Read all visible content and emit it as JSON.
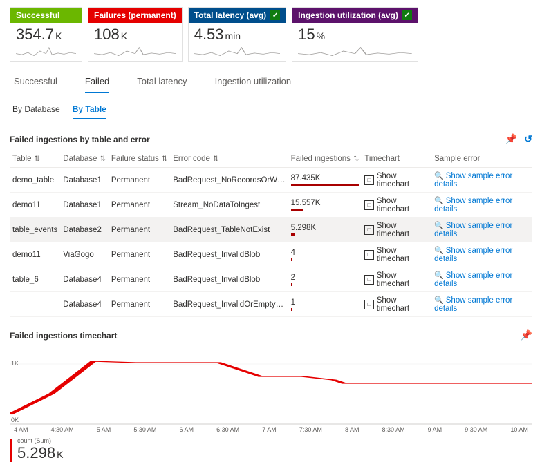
{
  "cards": [
    {
      "label": "Successful",
      "bg": "#6bb700",
      "value": "354.7",
      "unit": "K",
      "hasCheck": false
    },
    {
      "label": "Failures (permanent)",
      "bg": "#e50000",
      "value": "108",
      "unit": "K",
      "hasCheck": false
    },
    {
      "label": "Total latency (avg)",
      "bg": "#004e8c",
      "value": "4.53",
      "unit": "min",
      "hasCheck": true
    },
    {
      "label": "Ingestion utilization (avg)",
      "bg": "#5c126b",
      "value": "15",
      "unit": "%",
      "hasCheck": true
    }
  ],
  "tabs": [
    "Successful",
    "Failed",
    "Total latency",
    "Ingestion utilization"
  ],
  "activeTab": "Failed",
  "subTabs": [
    "By Database",
    "By Table"
  ],
  "activeSubTab": "By Table",
  "tableTitle": "Failed ingestions by table and error",
  "columns": [
    "Table",
    "Database",
    "Failure status",
    "Error code",
    "Failed ingestions",
    "Timechart",
    "Sample error"
  ],
  "rows": [
    {
      "table": "demo_table",
      "db": "Database1",
      "status": "Permanent",
      "code": "BadRequest_NoRecordsOrW…",
      "count": "87.435K",
      "bar": 100,
      "hl": false
    },
    {
      "table": "demo11",
      "db": "Database1",
      "status": "Permanent",
      "code": "Stream_NoDataToIngest",
      "count": "15.557K",
      "bar": 18,
      "hl": false
    },
    {
      "table": "table_events",
      "db": "Database2",
      "status": "Permanent",
      "code": "BadRequest_TableNotExist",
      "count": "5.298K",
      "bar": 6,
      "hl": true
    },
    {
      "table": "demo11",
      "db": "ViaGogo",
      "status": "Permanent",
      "code": "BadRequest_InvalidBlob",
      "count": "4",
      "bar": 1,
      "hl": false
    },
    {
      "table": "table_6",
      "db": "Database4",
      "status": "Permanent",
      "code": "BadRequest_InvalidBlob",
      "count": "2",
      "bar": 1,
      "hl": false
    },
    {
      "table": "",
      "db": "Database4",
      "status": "Permanent",
      "code": "BadRequest_InvalidOrEmpty…",
      "count": "1",
      "bar": 1,
      "hl": false
    }
  ],
  "timechartLabel": "Show timechart",
  "sampleErrorLabel": "Show sample error details",
  "chartTitle": "Failed ingestions timechart",
  "chart": {
    "yTicks": [
      "1K",
      "0K"
    ],
    "xTicks": [
      "4 AM",
      "4:30 AM",
      "5 AM",
      "5:30 AM",
      "6 AM",
      "6:30 AM",
      "7 AM",
      "7:30 AM",
      "8 AM",
      "8:30 AM",
      "9 AM",
      "9:30 AM",
      "10 AM"
    ],
    "points": [
      [
        0,
        85
      ],
      [
        8,
        55
      ],
      [
        16,
        8
      ],
      [
        24,
        10
      ],
      [
        40,
        10
      ],
      [
        48,
        30
      ],
      [
        56,
        30
      ],
      [
        62,
        35
      ],
      [
        64,
        40
      ],
      [
        100,
        40
      ]
    ],
    "color": "#e50000"
  },
  "summaryLabel": "count (Sum)",
  "summaryValue": "5.298",
  "summaryUnit": "K"
}
